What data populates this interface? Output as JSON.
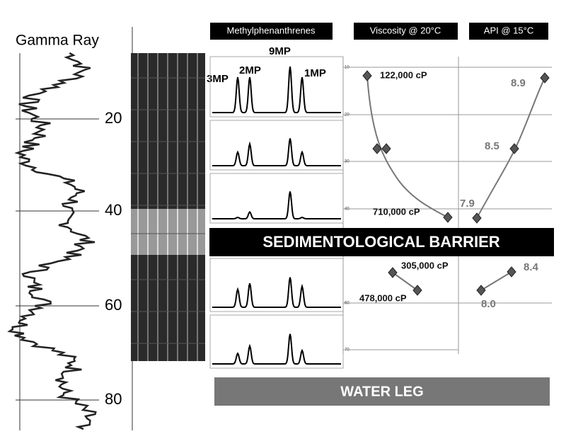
{
  "gamma_ray": {
    "title": "Gamma Ray",
    "depth_labels": [
      "20",
      "40",
      "60",
      "80"
    ]
  },
  "methylphenanthrenes": {
    "title": "Methylphenanthrenes",
    "peaks": [
      "3MP",
      "2MP",
      "9MP",
      "1MP"
    ]
  },
  "viscosity": {
    "title": "Viscosity @ 20°C",
    "axis_labels": [
      "10",
      "20",
      "30",
      "40",
      "60",
      "70"
    ],
    "labels": [
      "122,000 cP",
      "710,000 cP",
      "305,000 cP",
      "478,000 cP"
    ]
  },
  "api": {
    "title": "API @ 15°C",
    "labels": [
      "8.9",
      "8.5",
      "7.9",
      "8.4",
      "8.0"
    ]
  },
  "barrier": "SEDIMENTOLOGICAL BARRIER",
  "water_leg": "WATER LEG"
}
